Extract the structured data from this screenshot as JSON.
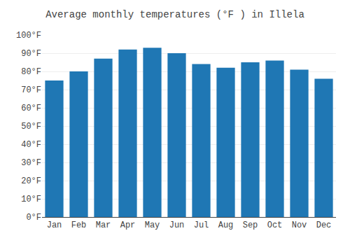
{
  "chart_data": {
    "type": "bar",
    "title": "Average monthly temperatures (°F ) in Illela",
    "categories": [
      "Jan",
      "Feb",
      "Mar",
      "Apr",
      "May",
      "Jun",
      "Jul",
      "Aug",
      "Sep",
      "Oct",
      "Nov",
      "Dec"
    ],
    "values": [
      75,
      80,
      87,
      92,
      93,
      90,
      84,
      82,
      85,
      86,
      81,
      76
    ],
    "ylim": [
      0,
      100
    ],
    "yticks": [
      {
        "value": 0,
        "label": "0°F"
      },
      {
        "value": 10,
        "label": "10°F"
      },
      {
        "value": 20,
        "label": "20°F"
      },
      {
        "value": 30,
        "label": "30°F"
      },
      {
        "value": 40,
        "label": "40°F"
      },
      {
        "value": 50,
        "label": "50°F"
      },
      {
        "value": 60,
        "label": "60°F"
      },
      {
        "value": 70,
        "label": "70°F"
      },
      {
        "value": 80,
        "label": "80°F"
      },
      {
        "value": 90,
        "label": "90°F"
      },
      {
        "value": 100,
        "label": "100°F"
      }
    ],
    "grid": true
  }
}
